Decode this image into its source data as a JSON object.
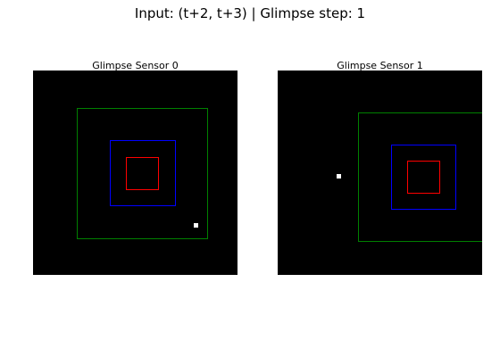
{
  "figure": {
    "title": "Input: (t+2, t+3) | Glimpse step: 1",
    "background": "#ffffff"
  },
  "panels": [
    {
      "title": "Glimpse Sensor 0"
    },
    {
      "title": "Glimpse Sensor 1"
    }
  ],
  "colors": {
    "image_background": "#000000",
    "pixel": "#ffffff",
    "scale_small": "#ff0000",
    "scale_medium": "#0000ff",
    "scale_large": "#008000"
  }
}
